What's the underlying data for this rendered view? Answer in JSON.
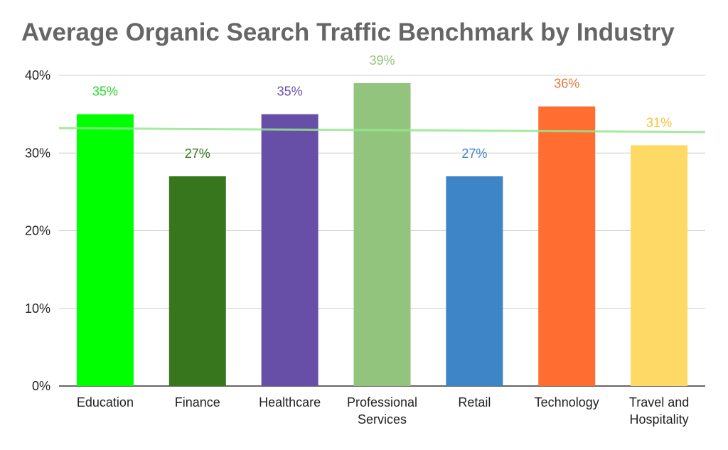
{
  "chart_data": {
    "type": "bar",
    "title": "Average Organic Search Traffic Benchmark by Industry",
    "xlabel": "",
    "ylabel": "",
    "ylim": [
      0,
      40
    ],
    "y_ticks": [
      "0%",
      "10%",
      "20%",
      "30%",
      "40%"
    ],
    "y_tick_values": [
      0,
      10,
      20,
      30,
      40
    ],
    "grid": true,
    "legend": "none",
    "categories": [
      [
        "Education"
      ],
      [
        "Finance"
      ],
      [
        "Healthcare"
      ],
      [
        "Professional",
        "Services"
      ],
      [
        "Retail"
      ],
      [
        "Technology"
      ],
      [
        "Travel and",
        "Hospitality"
      ]
    ],
    "values": [
      35,
      27,
      35,
      39,
      27,
      36,
      31
    ],
    "data_labels": [
      "35%",
      "27%",
      "35%",
      "39%",
      "27%",
      "36%",
      "31%"
    ],
    "colors": [
      "#00ff00",
      "#38761d",
      "#674ea7",
      "#93c47d",
      "#3d85c6",
      "#ff6d31",
      "#ffd966"
    ],
    "label_colors": [
      "#23d923",
      "#38761d",
      "#674ea7",
      "#93c47d",
      "#3d85c6",
      "#e8743b",
      "#f1c232"
    ],
    "trendline": {
      "start": 33.2,
      "end": 32.7,
      "color": "#93e88d"
    }
  }
}
